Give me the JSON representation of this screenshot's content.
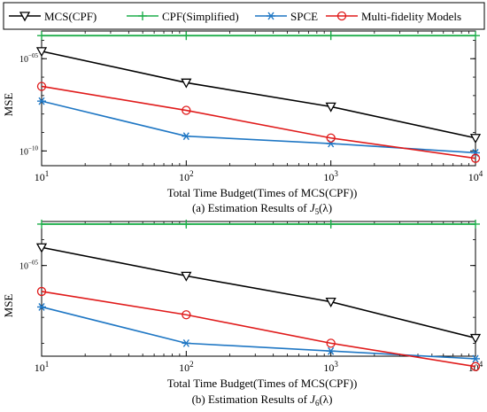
{
  "figure": {
    "legend": [
      {
        "name": "MCS(CPF)",
        "color": "#000000",
        "marker": "triangle-down"
      },
      {
        "name": "CPF(Simplified)",
        "color": "#1fae4b",
        "marker": "plus"
      },
      {
        "name": "SPCE",
        "color": "#1f77c4",
        "marker": "asterisk"
      },
      {
        "name": "Multi-fidelity Models",
        "color": "#e01b1b",
        "marker": "circle"
      }
    ]
  },
  "chart_data": [
    {
      "type": "line",
      "caption": "(a) Estimation Results of J5(λ)",
      "caption_parts": {
        "prefix": "(a) Estimation Results of ",
        "symbol": "J",
        "sub": "5",
        "suffix": "(λ)"
      },
      "xlabel": "Total Time Budget(Times of MCS(CPF))",
      "ylabel": "MSE",
      "xscale": "log",
      "yscale": "log",
      "xlim": [
        10,
        10000
      ],
      "ylim_log10": [
        -10.8,
        -3.5
      ],
      "x": [
        10,
        100,
        1000,
        10000
      ],
      "x_ticks": [
        {
          "value": 10,
          "base": "10",
          "exp": "1"
        },
        {
          "value": 100,
          "base": "10",
          "exp": "2"
        },
        {
          "value": 1000,
          "base": "10",
          "exp": "3"
        },
        {
          "value": 10000,
          "base": "10",
          "exp": "4"
        }
      ],
      "y_ticks": [
        {
          "log10": -5,
          "base": "10",
          "exp": "−05"
        },
        {
          "log10": -10,
          "base": "10",
          "exp": "−10"
        }
      ],
      "grid": false,
      "legend_position": "top",
      "series": [
        {
          "name": "MCS(CPF)",
          "log10_values": [
            -4.6,
            -6.3,
            -7.6,
            -9.3
          ]
        },
        {
          "name": "CPF(Simplified)",
          "log10_values": [
            -3.75,
            -3.75,
            -3.75,
            -3.75
          ]
        },
        {
          "name": "SPCE",
          "log10_values": [
            -7.3,
            -9.2,
            -9.6,
            -10.1
          ]
        },
        {
          "name": "Multi-fidelity Models",
          "log10_values": [
            -6.5,
            -7.8,
            -9.3,
            -10.4
          ]
        }
      ]
    },
    {
      "type": "line",
      "caption": "(b) Estimation Results of J6(λ)",
      "caption_parts": {
        "prefix": "(b) Estimation Results of ",
        "symbol": "J",
        "sub": "6",
        "suffix": "(λ)"
      },
      "xlabel": "Total Time Budget(Times of MCS(CPF))",
      "ylabel": "MSE",
      "xscale": "log",
      "yscale": "log",
      "xlim": [
        10,
        10000
      ],
      "ylim_log10": [
        -8.5,
        -3.3
      ],
      "x": [
        10,
        100,
        1000,
        10000
      ],
      "x_ticks": [
        {
          "value": 10,
          "base": "10",
          "exp": "1"
        },
        {
          "value": 100,
          "base": "10",
          "exp": "2"
        },
        {
          "value": 1000,
          "base": "10",
          "exp": "3"
        },
        {
          "value": 10000,
          "base": "10",
          "exp": "4"
        }
      ],
      "y_ticks": [
        {
          "log10": -5,
          "base": "10",
          "exp": "−05"
        }
      ],
      "grid": false,
      "legend_position": "none",
      "series": [
        {
          "name": "MCS(CPF)",
          "log10_values": [
            -4.3,
            -5.4,
            -6.4,
            -7.8
          ]
        },
        {
          "name": "CPF(Simplified)",
          "log10_values": [
            -3.4,
            -3.4,
            -3.4,
            -3.4
          ]
        },
        {
          "name": "SPCE",
          "log10_values": [
            -6.6,
            -8.0,
            -8.3,
            -8.6
          ]
        },
        {
          "name": "Multi-fidelity Models",
          "log10_values": [
            -6.0,
            -6.9,
            -8.0,
            -8.9
          ]
        }
      ]
    }
  ]
}
